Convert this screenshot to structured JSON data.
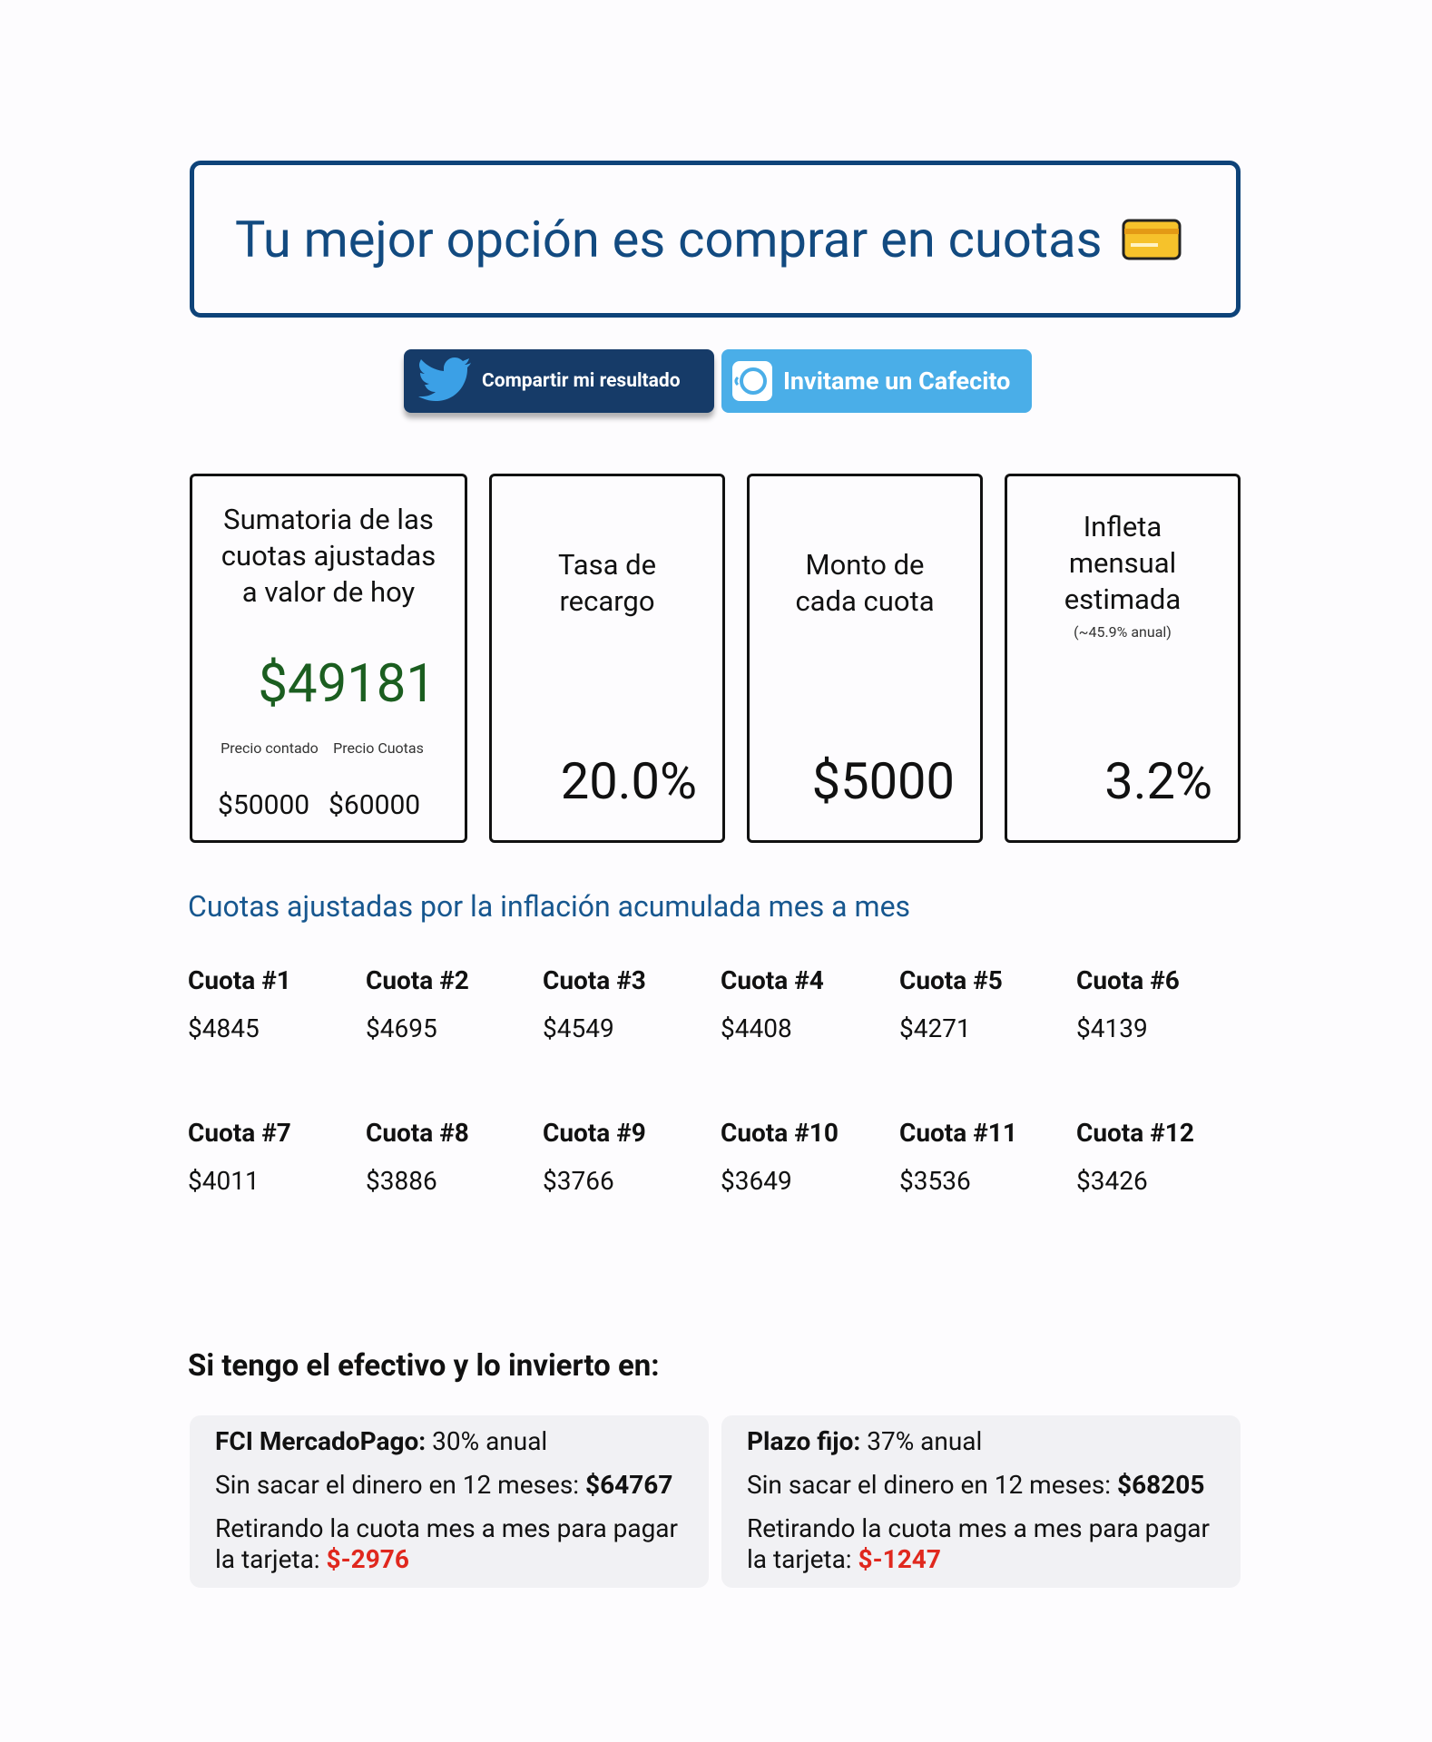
{
  "header": {
    "title": "Tu mejor opción es comprar en cuotas"
  },
  "buttons": {
    "share": "Compartir mi resultado",
    "cafecito": "Invitame un Cafecito"
  },
  "cards": [
    {
      "label": "Sumatoria de las cuotas ajustadas a valor de hoy",
      "value": "$49181",
      "cash_label": "Precio contado",
      "cash_value": "$50000",
      "installments_label": "Precio Cuotas",
      "installments_value": "$60000"
    },
    {
      "label": "Tasa de recargo",
      "value": "20.0%"
    },
    {
      "label": "Monto de cada cuota",
      "value": "$5000"
    },
    {
      "label": "Infleta mensual estimada",
      "note": "(~45.9% anual)",
      "value": "3.2%"
    }
  ],
  "installments_title": "Cuotas ajustadas por la inflación acumulada mes a mes",
  "installments": [
    {
      "label": "Cuota #1",
      "value": "$4845"
    },
    {
      "label": "Cuota #2",
      "value": "$4695"
    },
    {
      "label": "Cuota #3",
      "value": "$4549"
    },
    {
      "label": "Cuota #4",
      "value": "$4408"
    },
    {
      "label": "Cuota #5",
      "value": "$4271"
    },
    {
      "label": "Cuota #6",
      "value": "$4139"
    },
    {
      "label": "Cuota #7",
      "value": "$4011"
    },
    {
      "label": "Cuota #8",
      "value": "$3886"
    },
    {
      "label": "Cuota #9",
      "value": "$3766"
    },
    {
      "label": "Cuota #10",
      "value": "$3649"
    },
    {
      "label": "Cuota #11",
      "value": "$3536"
    },
    {
      "label": "Cuota #12",
      "value": "$3426"
    }
  ],
  "investment": {
    "title": "Si tengo el efectivo y lo invierto en:",
    "options": [
      {
        "name": "FCI MercadoPago:",
        "rate": "30% anual",
        "keep_text": "Sin sacar el dinero en 12 meses:",
        "keep_value": "$64767",
        "withdraw_text": "Retirando la cuota mes a mes para pagar la tarjeta:",
        "withdraw_value": "$-2976"
      },
      {
        "name": "Plazo fijo:",
        "rate": "37% anual",
        "keep_text": "Sin sacar el dinero en 12 meses:",
        "keep_value": "$68205",
        "withdraw_text": "Retirando la cuota mes a mes para pagar la tarjeta:",
        "withdraw_value": "$-1247"
      }
    ]
  }
}
